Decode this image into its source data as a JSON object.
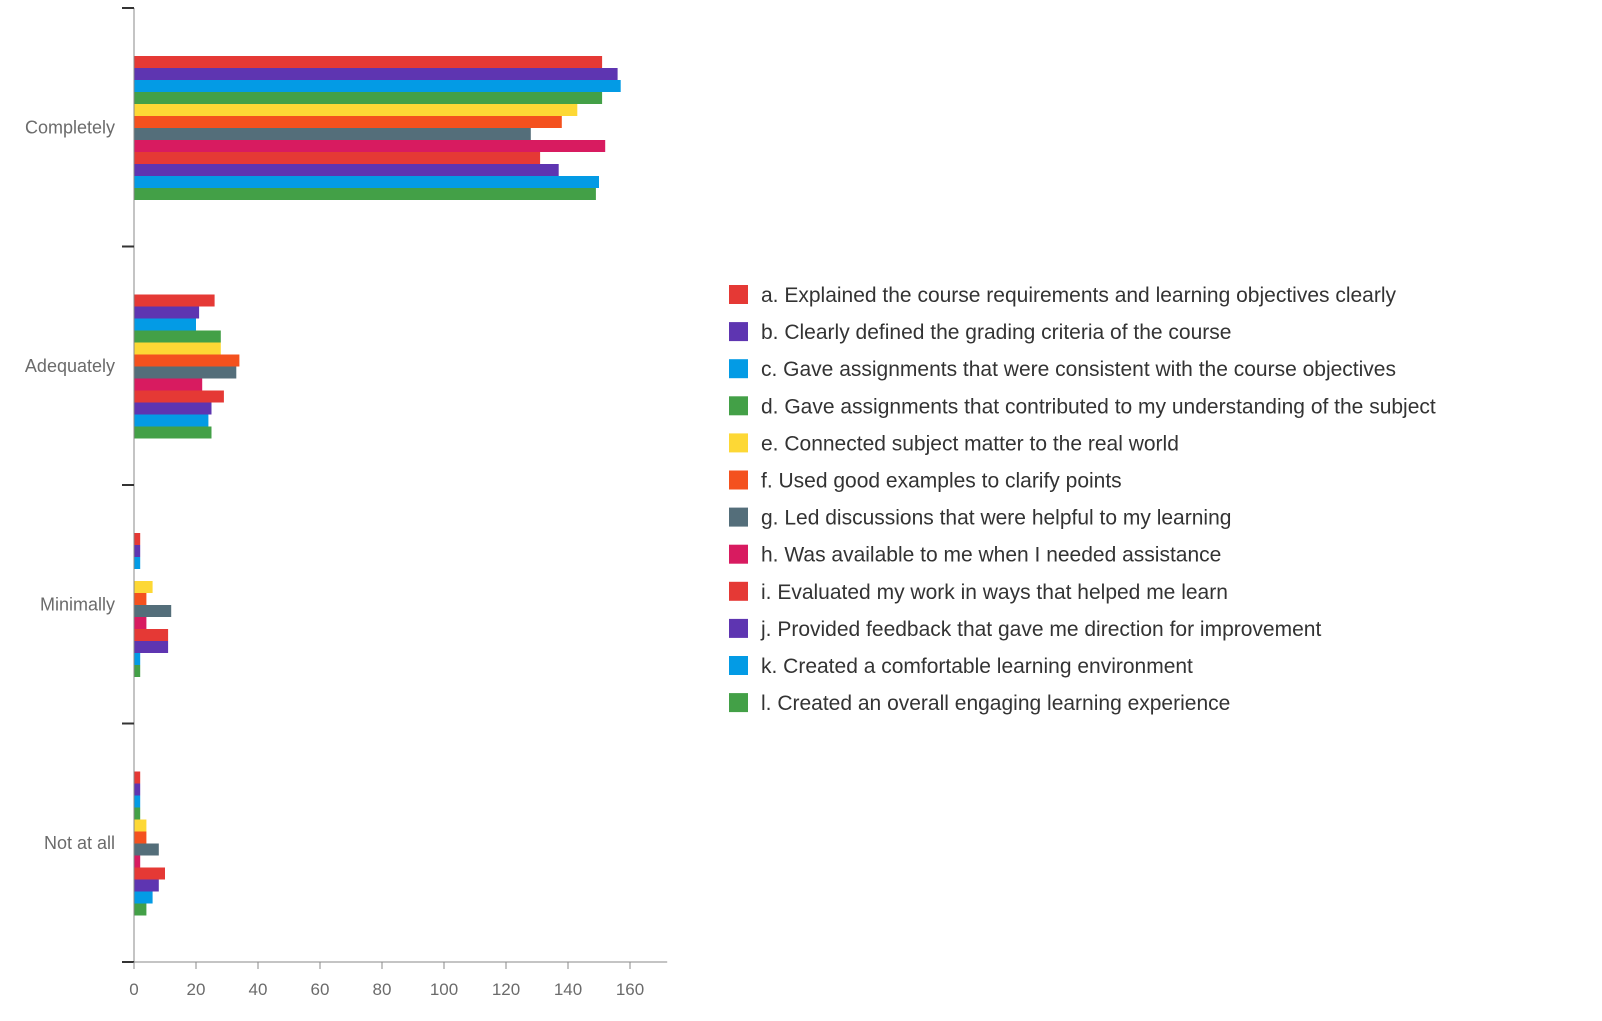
{
  "chart_data": {
    "type": "bar",
    "orientation": "horizontal",
    "categories": [
      "Completely",
      "Adequately",
      "Minimally",
      "Not at all"
    ],
    "xlim": [
      0,
      172
    ],
    "xticks": [
      0,
      20,
      40,
      60,
      80,
      100,
      120,
      140,
      160
    ],
    "grid": false,
    "legend_position": "right",
    "series": [
      {
        "name": "a. Explained the course requirements and learning objectives clearly",
        "color": "#e53935",
        "values": [
          151,
          26,
          2,
          2
        ]
      },
      {
        "name": "b. Clearly defined the grading criteria of the course",
        "color": "#5e35b1",
        "values": [
          156,
          21,
          2,
          2
        ]
      },
      {
        "name": "c. Gave assignments that were consistent with the course objectives",
        "color": "#039be5",
        "values": [
          157,
          20,
          2,
          2
        ]
      },
      {
        "name": "d. Gave assignments that contributed to my understanding of the subject",
        "color": "#43a047",
        "values": [
          151,
          28,
          0,
          2
        ]
      },
      {
        "name": "e. Connected subject matter to the real world",
        "color": "#fdd835",
        "values": [
          143,
          28,
          6,
          4
        ]
      },
      {
        "name": "f. Used good examples to clarify points",
        "color": "#f4511e",
        "values": [
          138,
          34,
          4,
          4
        ]
      },
      {
        "name": "g. Led discussions that were helpful to my learning",
        "color": "#546e7a",
        "values": [
          128,
          33,
          12,
          8
        ]
      },
      {
        "name": "h. Was available to me when I needed assistance",
        "color": "#d81b60",
        "values": [
          152,
          22,
          4,
          2
        ]
      },
      {
        "name": "i. Evaluated my work in ways that helped me learn",
        "color": "#e53935",
        "values": [
          131,
          29,
          11,
          10
        ]
      },
      {
        "name": "j. Provided feedback that gave me direction for improvement",
        "color": "#5e35b1",
        "values": [
          137,
          25,
          11,
          8
        ]
      },
      {
        "name": "k. Created a comfortable learning environment",
        "color": "#039be5",
        "values": [
          150,
          24,
          2,
          6
        ]
      },
      {
        "name": "l. Created an overall engaging learning experience",
        "color": "#43a047",
        "values": [
          149,
          25,
          2,
          4
        ]
      }
    ]
  }
}
